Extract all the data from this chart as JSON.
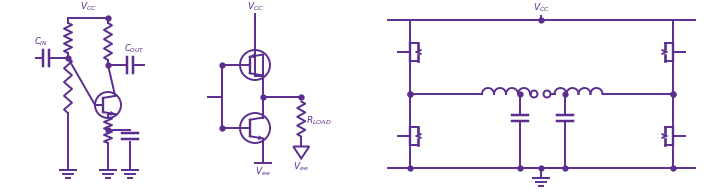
{
  "color": "#5B2D8E",
  "lw": 1.4,
  "bg": "#FFFFFF",
  "figsize": [
    7.1,
    1.94
  ],
  "dpi": 100
}
